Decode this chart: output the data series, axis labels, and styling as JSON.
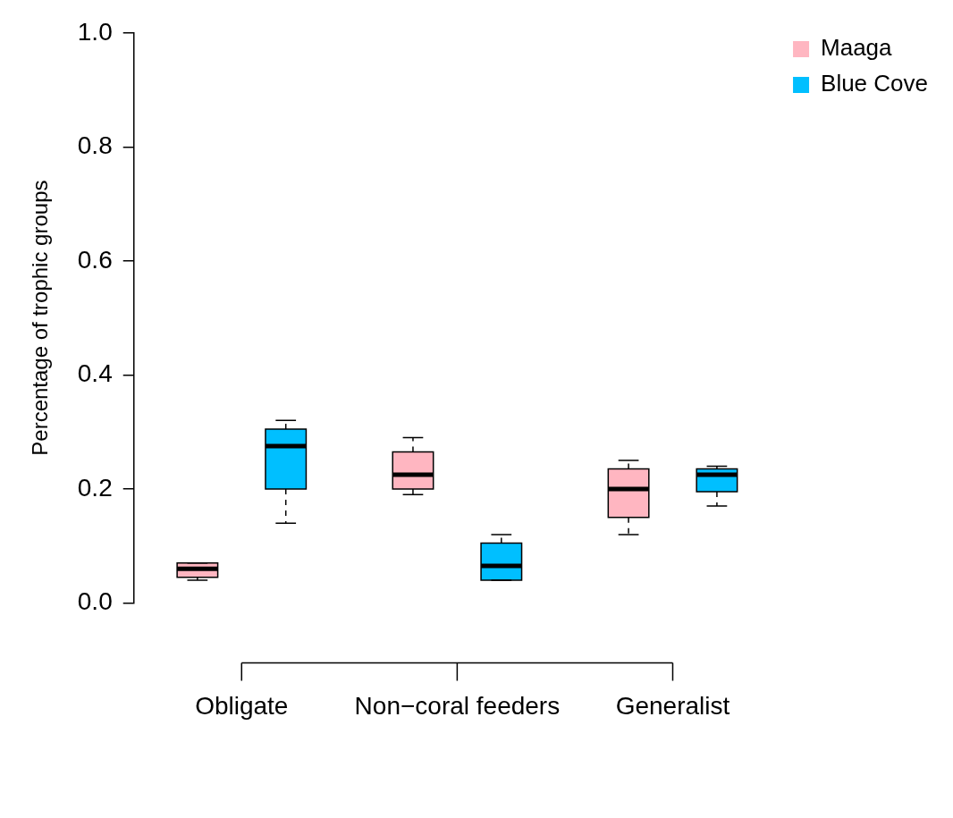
{
  "chart_data": {
    "type": "box",
    "ylabel": "Percentage of trophic groups",
    "categories": [
      "Obligate",
      "Non−coral feeders",
      "Generalist"
    ],
    "ylim": [
      0,
      1
    ],
    "yticks": [
      {
        "value": 0,
        "label": "0.0"
      },
      {
        "value": 0.2,
        "label": "0.2"
      },
      {
        "value": 0.4,
        "label": "0.4"
      },
      {
        "value": 0.6,
        "label": "0.6"
      },
      {
        "value": 0.8,
        "label": "0.8"
      },
      {
        "value": 1,
        "label": "1.0"
      }
    ],
    "legend": "top right",
    "grid": false,
    "series": [
      {
        "name": "Maaga",
        "color": "#ffb6c1",
        "boxes": [
          {
            "low": 0.04,
            "q1": 0.045,
            "median": 0.06,
            "q3": 0.07,
            "high": 0.07
          },
          {
            "low": 0.19,
            "q1": 0.2,
            "median": 0.225,
            "q3": 0.265,
            "high": 0.29
          },
          {
            "low": 0.12,
            "q1": 0.15,
            "median": 0.2,
            "q3": 0.235,
            "high": 0.25
          }
        ]
      },
      {
        "name": "Blue Cove",
        "color": "#00bfff",
        "boxes": [
          {
            "low": 0.14,
            "q1": 0.2,
            "median": 0.275,
            "q3": 0.305,
            "high": 0.32
          },
          {
            "low": 0.04,
            "q1": 0.04,
            "median": 0.065,
            "q3": 0.105,
            "high": 0.12
          },
          {
            "low": 0.17,
            "q1": 0.195,
            "median": 0.225,
            "q3": 0.235,
            "high": 0.24
          }
        ]
      }
    ]
  }
}
